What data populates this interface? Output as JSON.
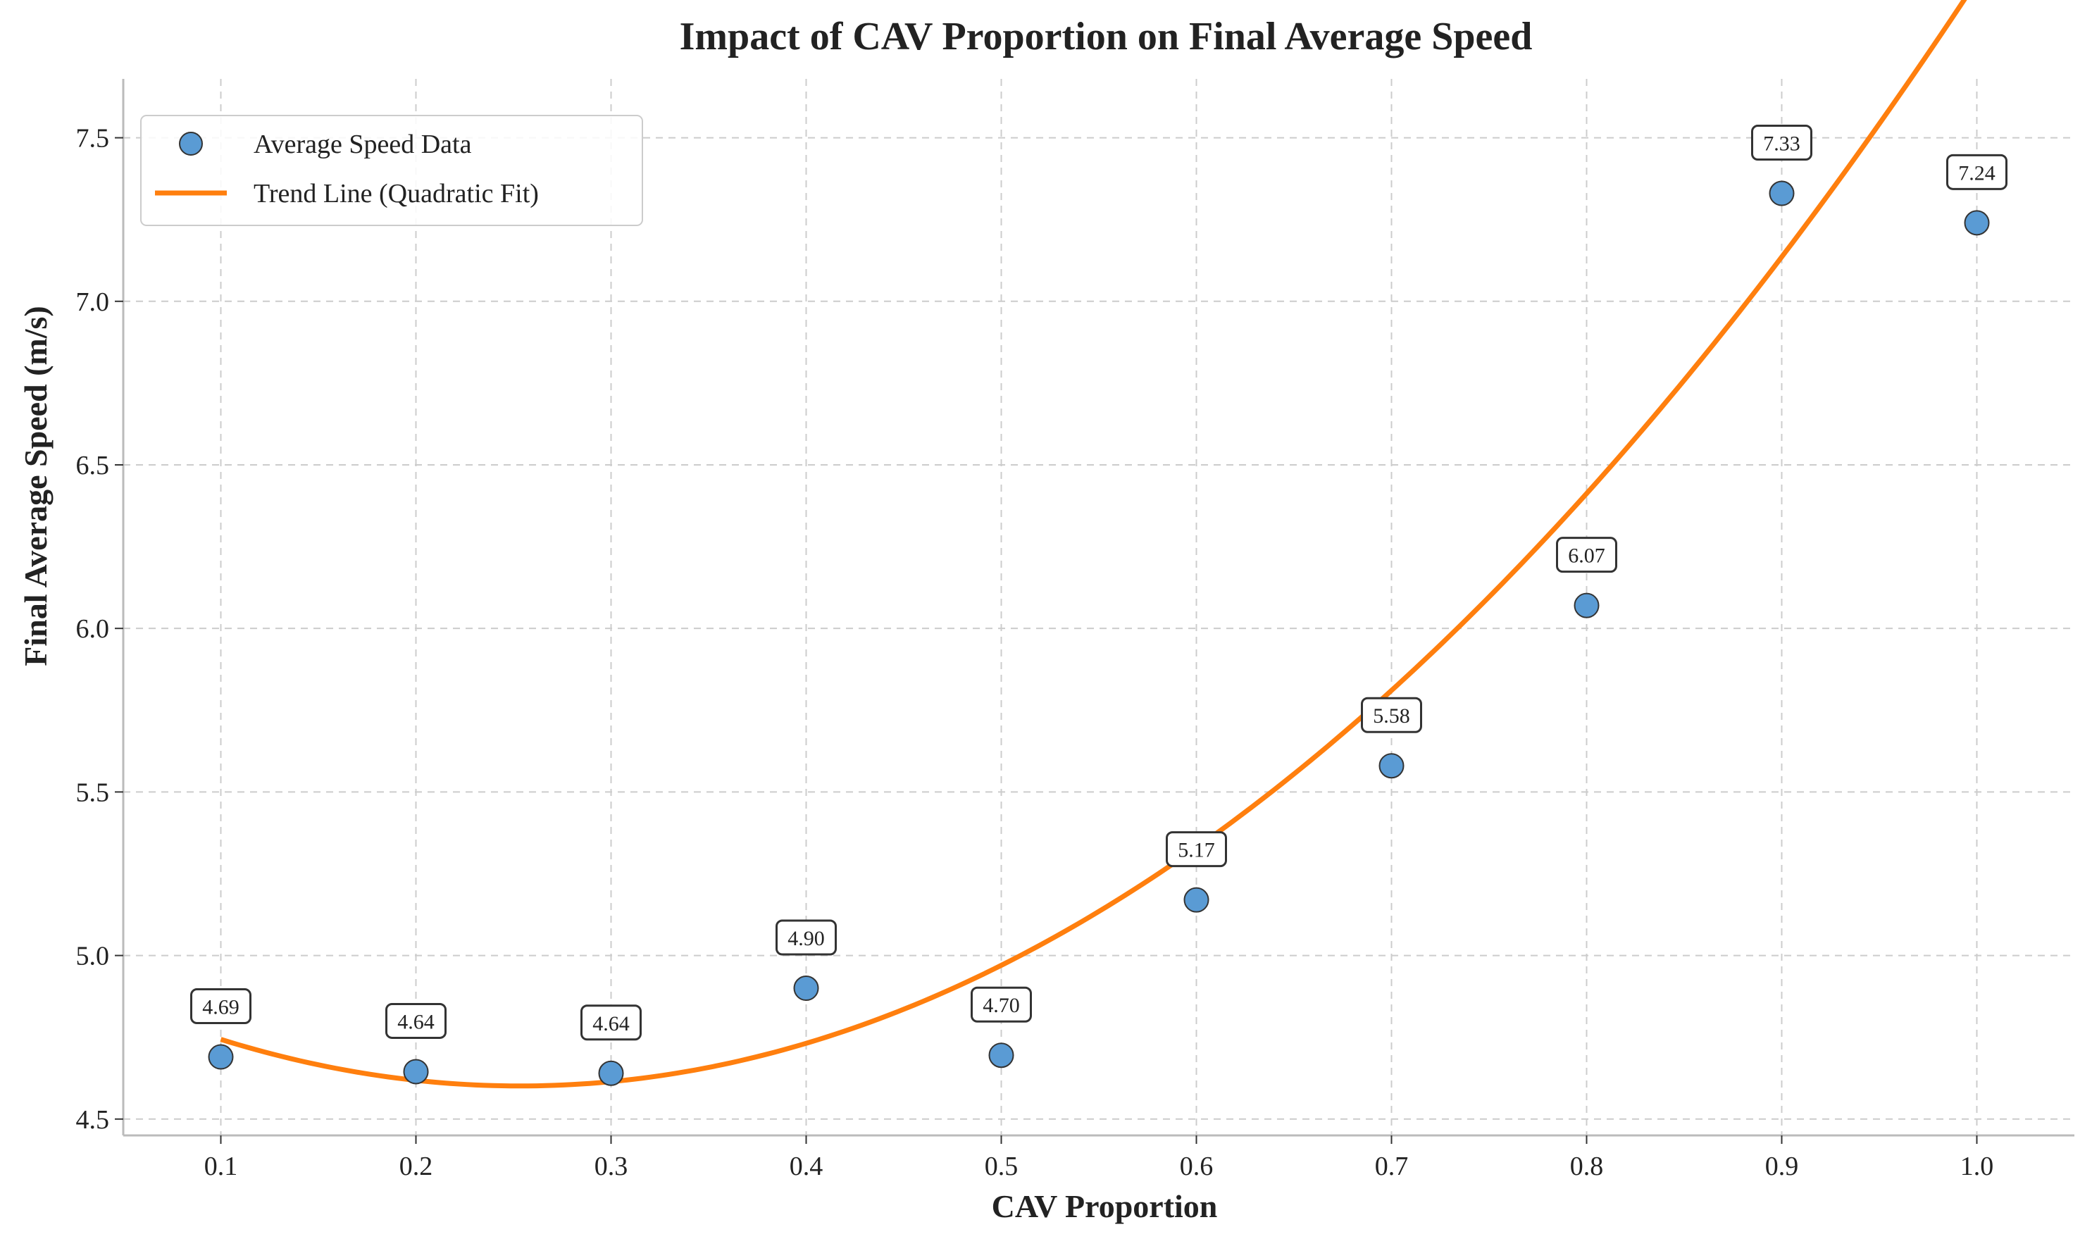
{
  "chart_data": {
    "type": "scatter",
    "title": "Impact of CAV Proportion on Final Average Speed",
    "xlabel": "CAV Proportion",
    "ylabel": "Final Average Speed (m/s)",
    "xlim": [
      0.05,
      1.05
    ],
    "ylim": [
      4.45,
      7.68
    ],
    "x_ticks": [
      "0.1",
      "0.2",
      "0.3",
      "0.4",
      "0.5",
      "0.6",
      "0.7",
      "0.8",
      "0.9",
      "1.0"
    ],
    "y_ticks": [
      "4.5",
      "5.0",
      "5.5",
      "6.0",
      "6.5",
      "7.0",
      "7.5"
    ],
    "grid": true,
    "legend_position": "top-left",
    "series": [
      {
        "name": "Average Speed Data",
        "kind": "scatter",
        "color": "#5a9bd4",
        "x": [
          0.1,
          0.2,
          0.3,
          0.4,
          0.5,
          0.6,
          0.7,
          0.8,
          0.9,
          1.0
        ],
        "y": [
          4.69,
          4.645,
          4.64,
          4.9,
          4.695,
          5.17,
          5.58,
          6.07,
          7.33,
          7.24
        ],
        "labels": [
          "4.69",
          "4.64",
          "4.64",
          "4.90",
          "4.70",
          "5.17",
          "5.58",
          "6.07",
          "7.33",
          "7.24"
        ]
      },
      {
        "name": "Trend Line (Quadratic Fit)",
        "kind": "line",
        "color": "#ff7f0e",
        "fit": "quadratic",
        "coefficients": [
          4.99,
          -3.07,
          6.06
        ],
        "x_range": [
          0.1,
          1.0
        ]
      }
    ]
  }
}
